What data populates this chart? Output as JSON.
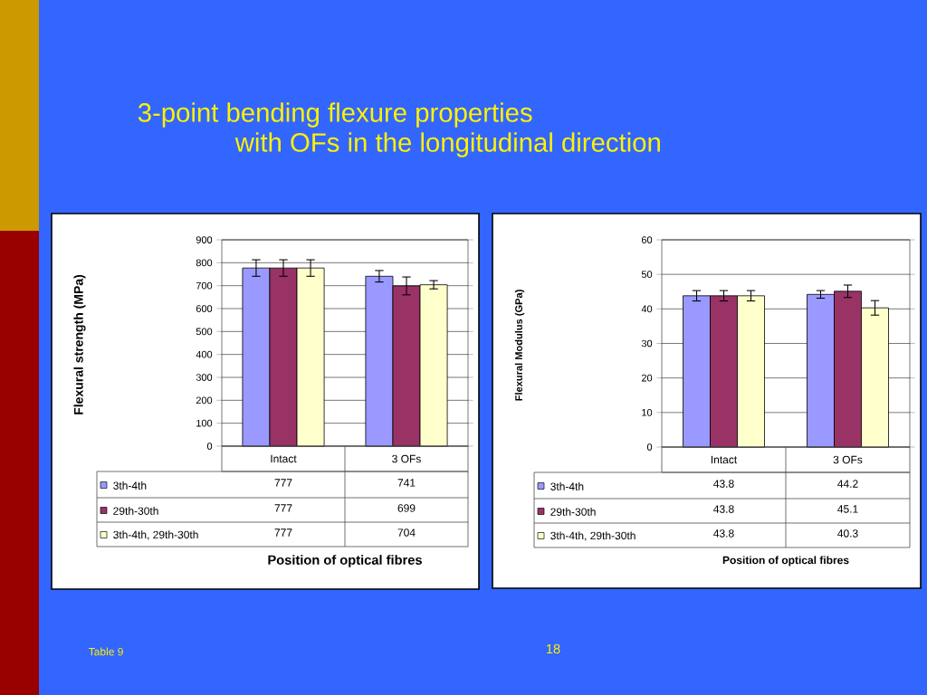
{
  "chart_data": [
    {
      "type": "bar",
      "title": "3-point bending flexure properties",
      "subtitle": "with OFs in the longitudinal direction",
      "xlabel": "Position of optical fibres",
      "ylabel": "Flexural strength (MPa)",
      "categories": [
        "Intact",
        "3 OFs"
      ],
      "series": [
        {
          "name": "3th-4th",
          "color": "#9999ff",
          "values": [
            777,
            741
          ],
          "errors": [
            36,
            25
          ]
        },
        {
          "name": "29th-30th",
          "color": "#993366",
          "values": [
            777,
            699
          ],
          "errors": [
            36,
            39
          ]
        },
        {
          "name": "3th-4th, 29th-30th",
          "color": "#ffffcc",
          "values": [
            777,
            704
          ],
          "errors": [
            36,
            18
          ]
        }
      ],
      "ylim": [
        0,
        900
      ],
      "yticks": [
        0,
        100,
        200,
        300,
        400,
        500,
        600,
        700,
        800,
        900
      ],
      "grid": "y",
      "legend": "bottom",
      "data_labels": true,
      "annotations": [
        "Table 9",
        "18"
      ]
    },
    {
      "type": "bar",
      "xlabel": "Position of optical fibres",
      "ylabel": "Flexural Modulus (GPa)",
      "categories": [
        "Intact",
        "3 OFs"
      ],
      "series": [
        {
          "name": "3th-4th",
          "color": "#9999ff",
          "values": [
            43.8,
            44.2
          ],
          "errors": [
            1.5,
            1.1
          ]
        },
        {
          "name": "29th-30th",
          "color": "#993366",
          "values": [
            43.8,
            45.1
          ],
          "errors": [
            1.5,
            1.8
          ]
        },
        {
          "name": "3th-4th, 29th-30th",
          "color": "#ffffcc",
          "values": [
            43.8,
            40.3
          ],
          "errors": [
            1.5,
            2.1
          ]
        }
      ],
      "ylim": [
        0,
        60
      ],
      "yticks": [
        0,
        10,
        20,
        30,
        40,
        50,
        60
      ],
      "grid": "y",
      "legend": "bottom",
      "data_labels": true
    }
  ]
}
